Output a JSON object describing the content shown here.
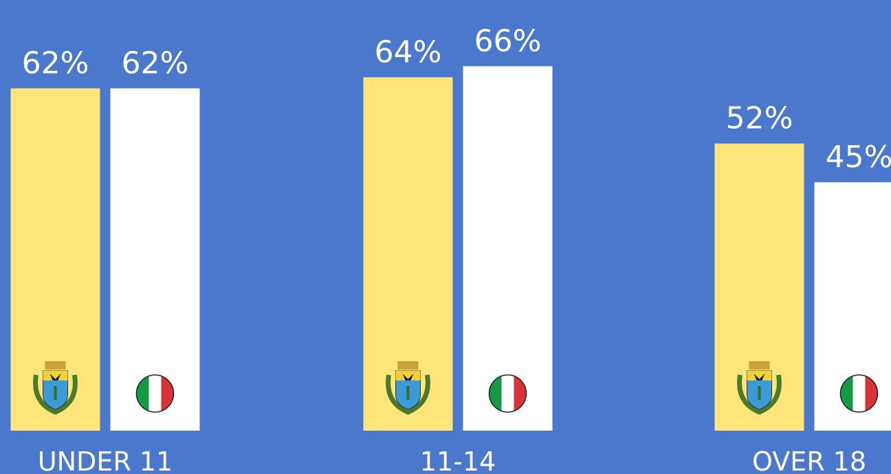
{
  "chart_data": {
    "type": "bar",
    "categories": [
      "UNDER 11",
      "11-14",
      "OVER 18"
    ],
    "series": [
      {
        "color": "#ffe57a",
        "values": [
          62,
          64,
          52
        ],
        "value_labels": [
          "62%",
          "64%",
          "52%"
        ]
      },
      {
        "color": "#ffffff",
        "values": [
          62,
          66,
          45
        ],
        "value_labels": [
          "62%",
          "66%",
          "45%"
        ]
      }
    ],
    "ylim": [
      0,
      78
    ]
  }
}
